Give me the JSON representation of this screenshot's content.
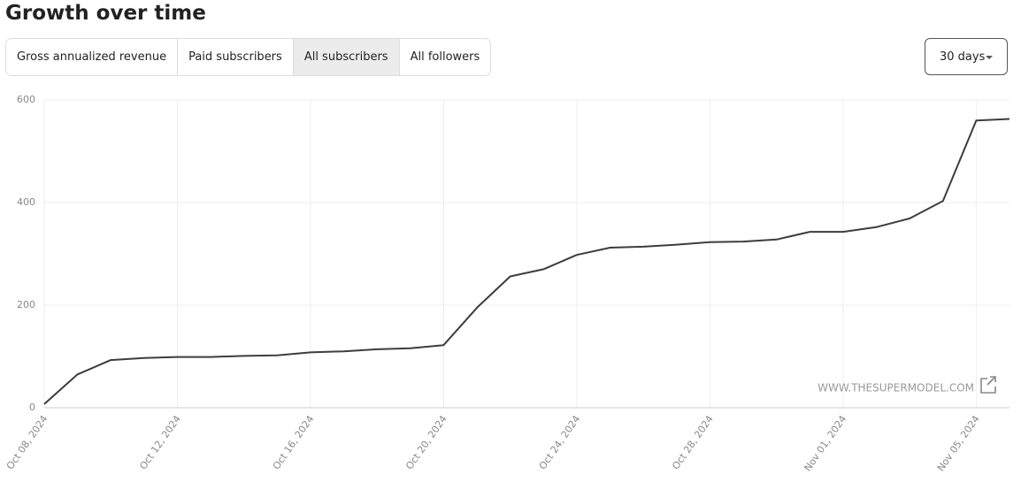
{
  "header": {
    "title": "Growth over time"
  },
  "tabs": [
    "Gross annualized revenue",
    "Paid subscribers",
    "All subscribers",
    "All followers"
  ],
  "dropdown": {
    "label": "30 days"
  },
  "watermark": "WWW.THESUPERMODEL.COM",
  "chart_data": {
    "type": "line",
    "x": [
      "Oct 08, 2024",
      "Oct 09, 2024",
      "Oct 10, 2024",
      "Oct 11, 2024",
      "Oct 12, 2024",
      "Oct 13, 2024",
      "Oct 14, 2024",
      "Oct 15, 2024",
      "Oct 16, 2024",
      "Oct 17, 2024",
      "Oct 18, 2024",
      "Oct 19, 2024",
      "Oct 20, 2024",
      "Oct 21, 2024",
      "Oct 22, 2024",
      "Oct 23, 2024",
      "Oct 24, 2024",
      "Oct 25, 2024",
      "Oct 26, 2024",
      "Oct 27, 2024",
      "Oct 28, 2024",
      "Oct 29, 2024",
      "Oct 30, 2024",
      "Oct 31, 2024",
      "Nov 01, 2024",
      "Nov 02, 2024",
      "Nov 03, 2024",
      "Nov 04, 2024",
      "Nov 05, 2024",
      "Nov 06, 2024"
    ],
    "values": [
      7,
      65,
      93,
      97,
      99,
      99,
      101,
      102,
      108,
      110,
      114,
      116,
      122,
      195,
      256,
      270,
      298,
      312,
      314,
      318,
      323,
      324,
      328,
      343,
      343,
      352,
      369,
      403,
      560,
      563
    ],
    "color": "#3d3d3d",
    "xlim": [
      "Oct 08, 2024",
      "Nov 06, 2024"
    ],
    "xticks": [
      "Oct 08, 2024",
      "Oct 12, 2024",
      "Oct 16, 2024",
      "Oct 20, 2024",
      "Oct 24, 2024",
      "Oct 28, 2024",
      "Nov 01, 2024",
      "Nov 05, 2024"
    ],
    "ylim": [
      0,
      600
    ],
    "yticks": [
      0,
      200,
      400,
      600
    ],
    "grid": true
  }
}
